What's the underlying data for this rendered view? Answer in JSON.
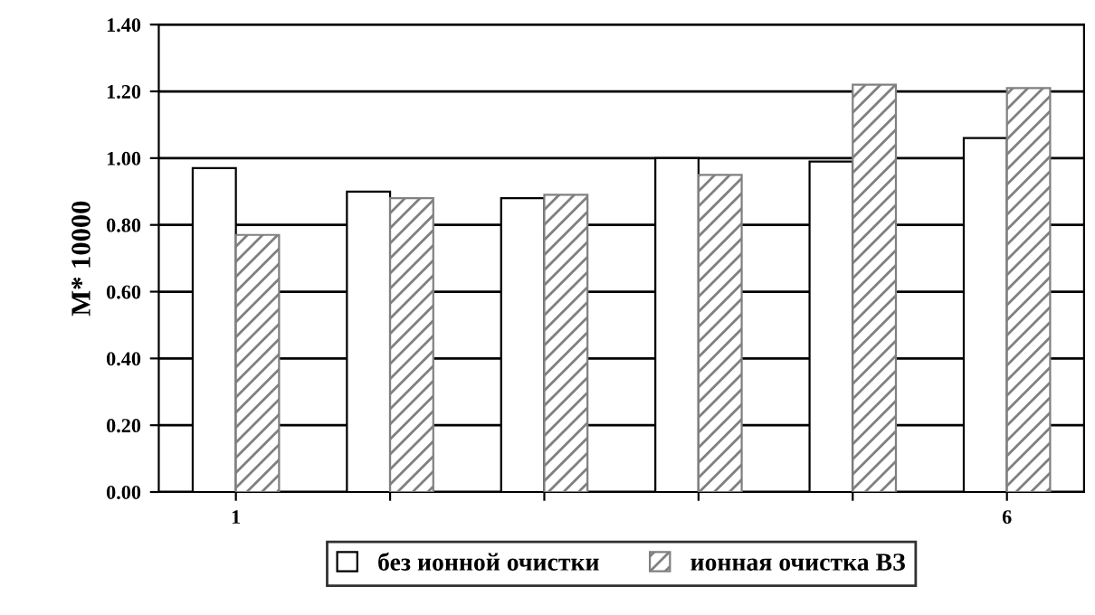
{
  "chart_data": {
    "type": "bar",
    "ylabel": "M* 10000",
    "categories": [
      "1",
      null,
      null,
      null,
      null,
      "6"
    ],
    "series": [
      {
        "name": "без ионной очистки",
        "color": "#ffffff",
        "values": [
          0.97,
          0.9,
          0.88,
          1.0,
          0.99,
          1.06
        ]
      },
      {
        "name": "ионная очистка ВЗ",
        "color": "#808080",
        "values": [
          0.77,
          0.88,
          0.89,
          0.95,
          1.22,
          1.21
        ]
      }
    ],
    "ylim": [
      0,
      1.4
    ],
    "yticks": [
      {
        "value": 0,
        "label": "0.00"
      },
      {
        "value": 0.2,
        "label": "0.20"
      },
      {
        "value": 0.4,
        "label": "0.40"
      },
      {
        "value": 0.6,
        "label": "0.60"
      },
      {
        "value": 0.8,
        "label": "0.80"
      },
      {
        "value": 1.0,
        "label": "1.00"
      },
      {
        "value": 1.2,
        "label": "1.20"
      },
      {
        "value": 1.4,
        "label": "1.40"
      }
    ],
    "grid": "y",
    "legend": "bottom"
  }
}
